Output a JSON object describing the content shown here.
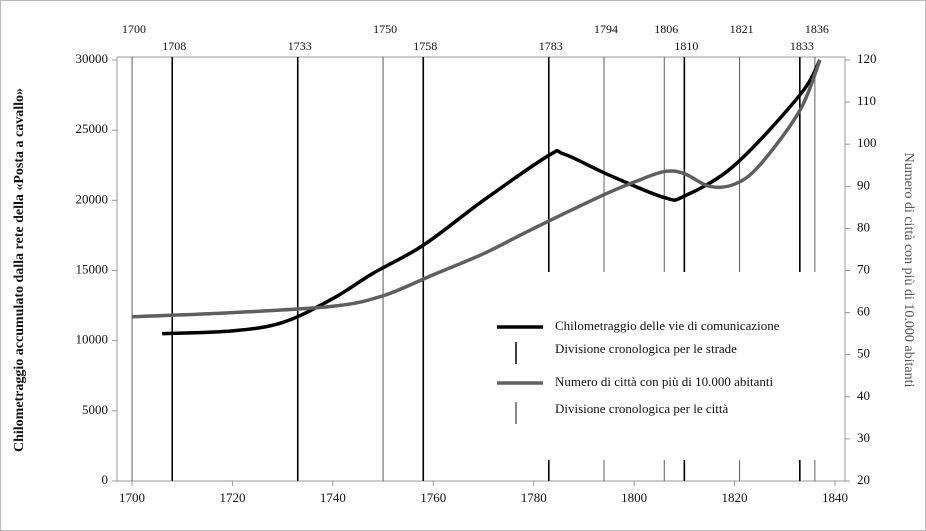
{
  "chart_data": {
    "type": "line",
    "y_label": "Chilometraggio accumulato dalla rete della «Posta a cavallo»",
    "y2_label": "Numero di città con più di 10.000 abitanti",
    "xlim": [
      1697,
      1842
    ],
    "xticks": [
      1700,
      1720,
      1740,
      1760,
      1780,
      1800,
      1820,
      1840
    ],
    "ylim": [
      0,
      30000
    ],
    "yticks": [
      0,
      5000,
      10000,
      15000,
      20000,
      25000,
      30000
    ],
    "y2lim": [
      20,
      120
    ],
    "y2ticks": [
      20,
      30,
      40,
      50,
      60,
      70,
      80,
      90,
      100,
      110,
      120
    ],
    "series": [
      {
        "name": "Chilometraggio delle vie di comunicazione",
        "color": "#000000",
        "axis": "y",
        "x": [
          1706,
          1720,
          1730,
          1740,
          1748,
          1758,
          1770,
          1783,
          1786,
          1795,
          1806,
          1810,
          1820,
          1833,
          1837
        ],
        "values": [
          10500,
          10700,
          11300,
          13000,
          14800,
          16800,
          20000,
          23200,
          23300,
          21800,
          20200,
          20300,
          22500,
          27500,
          30000
        ]
      },
      {
        "name": "Numero di città con più di 10.000 abitanti",
        "color": "#5f5f5f",
        "axis": "y2",
        "x": [
          1700,
          1720,
          1740,
          1750,
          1760,
          1770,
          1780,
          1794,
          1800,
          1806,
          1810,
          1815,
          1820,
          1825,
          1833,
          1837
        ],
        "values": [
          59,
          60,
          61.5,
          64,
          69,
          74,
          80,
          88,
          91,
          93.5,
          93,
          90,
          90.5,
          95,
          108,
          120
        ]
      }
    ],
    "road_divisions": {
      "name": "Divisione cronologica per le strade",
      "color": "#000000",
      "years": [
        1708,
        1733,
        1758,
        1783,
        1810,
        1833
      ]
    },
    "city_divisions": {
      "name": "Divisione cronologica per le città",
      "color": "#5f5f5f",
      "years": [
        1700,
        1750,
        1794,
        1806,
        1821,
        1836
      ]
    }
  }
}
